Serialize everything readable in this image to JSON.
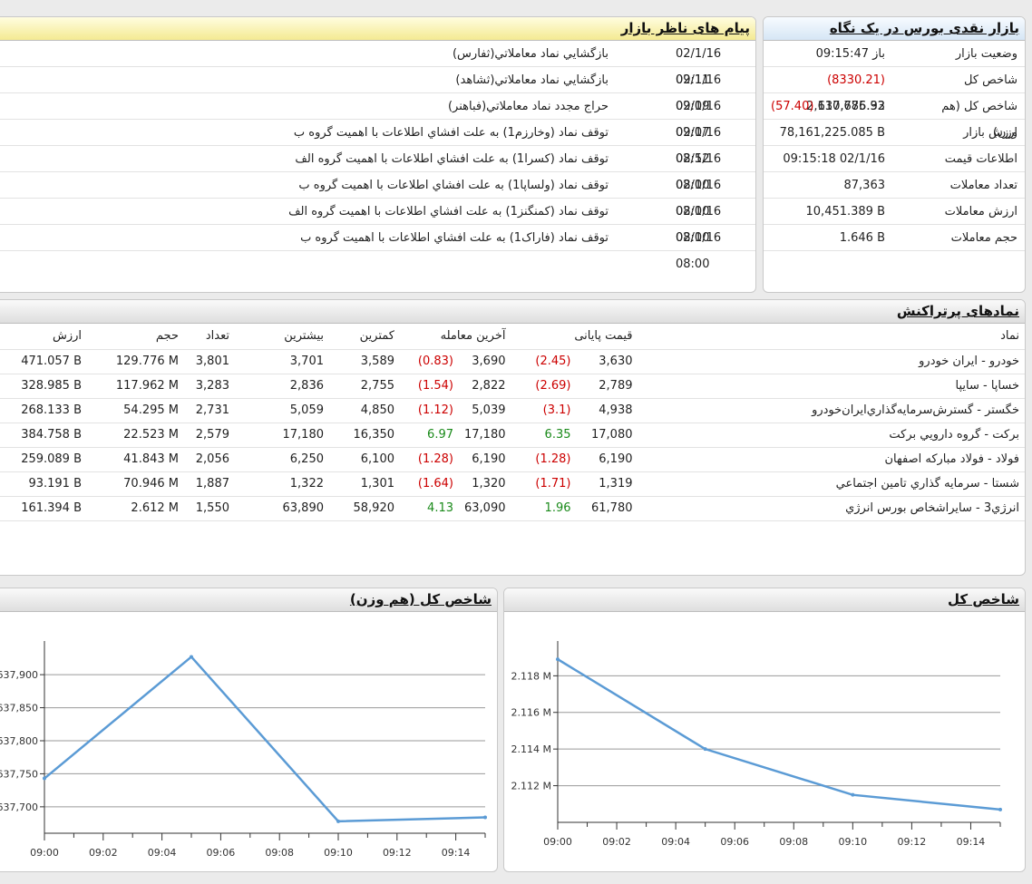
{
  "summary": {
    "title": "بازار نقدی بورس در یک نگاه",
    "rows": [
      {
        "label": "وضعیت بازار",
        "value": "باز 09:15:47",
        "change": ""
      },
      {
        "label": "شاخص کل",
        "value": "2,110,775.93",
        "change": "(8330.21)"
      },
      {
        "label": "شاخص کل (هم وزن)",
        "value": "637,686.32",
        "change": "(57.40)"
      },
      {
        "label": "ارزش بازار",
        "value": "78,161,225.085 B",
        "change": ""
      },
      {
        "label": "اطلاعات قیمت",
        "value": "09:15:18 02/1/16",
        "change": ""
      },
      {
        "label": "تعداد معاملات",
        "value": "87,363",
        "change": ""
      },
      {
        "label": "ارزش معاملات",
        "value": "10,451.389 B",
        "change": ""
      },
      {
        "label": "حجم معاملات",
        "value": "1.646 B",
        "change": ""
      }
    ]
  },
  "messages": {
    "title": "پیام های ناظر بازار",
    "items": [
      {
        "time": "02/1/16 09:11",
        "text": "بازگشايي نماد معاملاتي(ثفارس)"
      },
      {
        "time": "02/1/16 09:09",
        "text": "بازگشايي نماد معاملاتي(ثشاهد)"
      },
      {
        "time": "02/1/16 09:07",
        "text": "حراج مجدد نماد معاملاتي(فباهنر)"
      },
      {
        "time": "02/1/16 08:52",
        "text": "توقف نماد (وخارزم1) به علت افشاي اطلاعات با اهميت گروه ب"
      },
      {
        "time": "02/1/16 08:00",
        "text": "توقف نماد (کسرا1) به علت افشاي اطلاعات با اهميت گروه الف"
      },
      {
        "time": "02/1/16 08:00",
        "text": "توقف نماد (ولساپا1) به علت افشاي اطلاعات با اهميت گروه ب"
      },
      {
        "time": "02/1/16 08:00",
        "text": "توقف نماد (کمنگنز1) به علت افشاي اطلاعات با اهميت گروه الف"
      },
      {
        "time": "02/1/16 08:00",
        "text": "توقف نماد (فاراک1) به علت افشاي اطلاعات با اهميت گروه ب"
      }
    ]
  },
  "top_symbols": {
    "title": "نمادهای پرتراکنش",
    "headers": {
      "symbol": "نماد",
      "final_price": "قیمت پایانی",
      "last_trade": "آخرین معامله",
      "min": "کمترین",
      "max": "بیشترین",
      "count": "تعداد",
      "volume": "حجم",
      "value": "ارزش"
    },
    "rows": [
      {
        "symbol": "خودرو - ايران خودرو",
        "final": "3,630",
        "final_chg": "(2.45)",
        "final_dir": "neg",
        "last": "3,690",
        "last_chg": "(0.83)",
        "last_dir": "neg",
        "min": "3,589",
        "max": "3,701",
        "count": "3,801",
        "volume": "129.776 M",
        "value": "471.057 B"
      },
      {
        "symbol": "خساپا - سايپا",
        "final": "2,789",
        "final_chg": "(2.69)",
        "final_dir": "neg",
        "last": "2,822",
        "last_chg": "(1.54)",
        "last_dir": "neg",
        "min": "2,755",
        "max": "2,836",
        "count": "3,283",
        "volume": "117.962 M",
        "value": "328.985 B"
      },
      {
        "symbol": "خگستر - گسترش‌سرمايه‌گذاري‌ايران‌خودرو",
        "final": "4,938",
        "final_chg": "(3.1)",
        "final_dir": "neg",
        "last": "5,039",
        "last_chg": "(1.12)",
        "last_dir": "neg",
        "min": "4,850",
        "max": "5,059",
        "count": "2,731",
        "volume": "54.295 M",
        "value": "268.133 B"
      },
      {
        "symbol": "برکت - گروه دارويي برکت",
        "final": "17,080",
        "final_chg": "6.35",
        "final_dir": "pos",
        "last": "17,180",
        "last_chg": "6.97",
        "last_dir": "pos",
        "min": "16,350",
        "max": "17,180",
        "count": "2,579",
        "volume": "22.523 M",
        "value": "384.758 B"
      },
      {
        "symbol": "فولاد - فولاد مبارکه اصفهان",
        "final": "6,190",
        "final_chg": "(1.28)",
        "final_dir": "neg",
        "last": "6,190",
        "last_chg": "(1.28)",
        "last_dir": "neg",
        "min": "6,100",
        "max": "6,250",
        "count": "2,056",
        "volume": "41.843 M",
        "value": "259.089 B"
      },
      {
        "symbol": "شستا - سرمايه گذاري تامين اجتماعي",
        "final": "1,319",
        "final_chg": "(1.71)",
        "final_dir": "neg",
        "last": "1,320",
        "last_chg": "(1.64)",
        "last_dir": "neg",
        "min": "1,301",
        "max": "1,322",
        "count": "1,887",
        "volume": "70.946 M",
        "value": "93.191 B"
      },
      {
        "symbol": "انرژي3 - سايراشخاص بورس انرژي",
        "final": "61,780",
        "final_chg": "1.96",
        "final_dir": "pos",
        "last": "63,090",
        "last_chg": "4.13",
        "last_dir": "pos",
        "min": "58,920",
        "max": "63,890",
        "count": "1,550",
        "volume": "2.612 M",
        "value": "161.394 B"
      }
    ]
  },
  "colors": {
    "negative": "#cc0000",
    "positive": "#1a8a1a",
    "line": "#5b9bd5"
  },
  "chart_data": [
    {
      "type": "line",
      "title": "شاخص کل",
      "x": [
        "09:00",
        "09:05",
        "09:10",
        "09:15"
      ],
      "series": [
        {
          "values": [
            2118900,
            2114000,
            2111500,
            2110700
          ]
        }
      ],
      "xticks": [
        "09:00",
        "09:02",
        "09:04",
        "09:06",
        "09:08",
        "09:10",
        "09:12",
        "09:14"
      ],
      "yticks": [
        2112000,
        2114000,
        2116000,
        2118000
      ],
      "ytick_labels": [
        "2.112 M",
        "2.114 M",
        "2.116 M",
        "2.118 M"
      ],
      "xlim": [
        "09:00",
        "09:15"
      ],
      "ylim": [
        2110000,
        2119500
      ],
      "grid": true
    },
    {
      "type": "line",
      "title": "شاخص کل (هم وزن)",
      "x": [
        "09:00",
        "09:05",
        "09:10",
        "09:15"
      ],
      "series": [
        {
          "values": [
            637743,
            637927,
            637678,
            637684
          ]
        }
      ],
      "xticks": [
        "09:00",
        "09:02",
        "09:04",
        "09:06",
        "09:08",
        "09:10",
        "09:12",
        "09:14"
      ],
      "yticks": [
        637700,
        637750,
        637800,
        637850,
        637900
      ],
      "ytick_labels": [
        "637,700",
        "637,750",
        "637,800",
        "637,850",
        "637,900"
      ],
      "xlim": [
        "09:00",
        "09:15"
      ],
      "ylim": [
        637660,
        637940
      ],
      "grid": true
    }
  ]
}
